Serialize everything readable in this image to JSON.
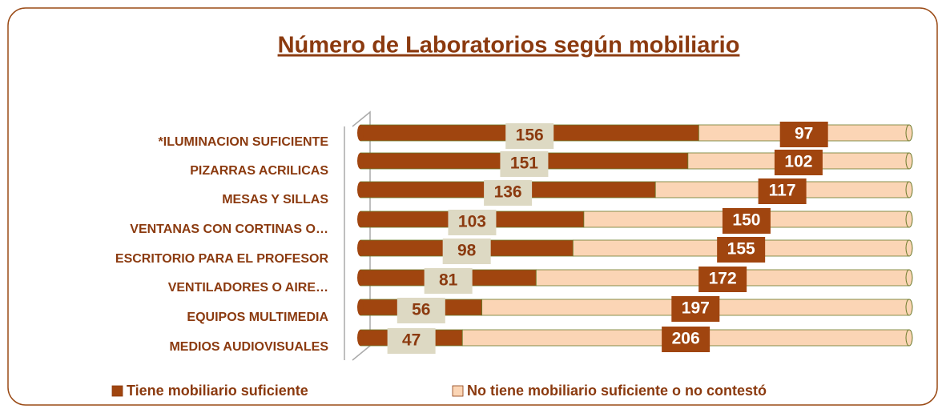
{
  "chart_data": {
    "type": "bar",
    "orientation": "horizontal",
    "stacked": true,
    "title": "Número de Laboratorios según  mobiliario",
    "categories": [
      "*ILUMINACION SUFICIENTE",
      "PIZARRAS ACRILICAS",
      "MESAS Y SILLAS",
      "VENTANAS CON CORTINAS O…",
      "ESCRITORIO PARA EL PROFESOR",
      "VENTILADORES O AIRE…",
      "EQUIPOS MULTIMEDIA",
      "MEDIOS AUDIOVISUALES"
    ],
    "series": [
      {
        "name": "Tiene mobiliario suficiente",
        "color": "#a0450f",
        "values": [
          156,
          151,
          136,
          103,
          98,
          81,
          56,
          47
        ]
      },
      {
        "name": "No tiene mobiliario suficiente o no contestó",
        "color": "#fbd5b5",
        "values": [
          97,
          102,
          117,
          150,
          155,
          172,
          197,
          206
        ]
      }
    ],
    "legend": "bottom"
  }
}
